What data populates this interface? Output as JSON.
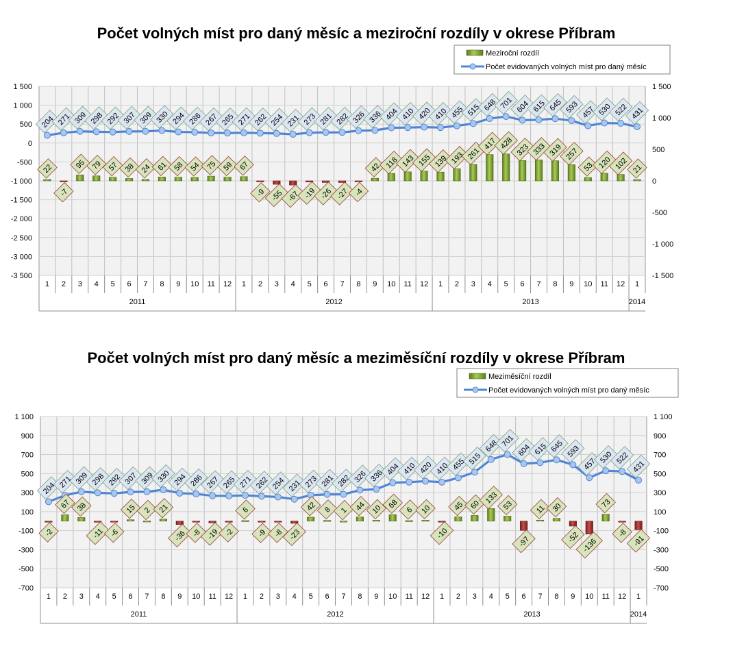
{
  "chart_data": [
    {
      "type": "bar+line",
      "title": "Počet volných míst pro daný měsíc a meziroční rozdíly v okrese Příbram",
      "legend": [
        "Meziroční rozdíl",
        "Počet evidovaných volných míst pro daný měsíc"
      ],
      "legend_position": "top-right",
      "grid": true,
      "months": [
        "1",
        "2",
        "3",
        "4",
        "5",
        "6",
        "7",
        "8",
        "9",
        "10",
        "11",
        "12",
        "1",
        "2",
        "3",
        "4",
        "5",
        "6",
        "7",
        "8",
        "9",
        "10",
        "11",
        "12",
        "1",
        "2",
        "3",
        "4",
        "5",
        "6",
        "7",
        "8",
        "9",
        "10",
        "11",
        "12",
        "1"
      ],
      "years": [
        {
          "label": "2011",
          "count": 12
        },
        {
          "label": "2012",
          "count": 12
        },
        {
          "label": "2013",
          "count": 12
        },
        {
          "label": "2014",
          "count": 1
        }
      ],
      "series": [
        {
          "name": "Meziroční rozdíl",
          "axis": "right",
          "kind": "bar",
          "values": [
            22,
            -7,
            95,
            79,
            57,
            38,
            24,
            61,
            58,
            54,
            75,
            59,
            67,
            -9,
            -55,
            -67,
            -19,
            -26,
            -27,
            -4,
            42,
            118,
            143,
            155,
            139,
            193,
            261,
            417,
            428,
            323,
            333,
            319,
            257,
            53,
            120,
            102,
            21
          ]
        },
        {
          "name": "Počet evidovaných volných míst pro daný měsíc",
          "axis": "left",
          "kind": "line",
          "values": [
            204,
            271,
            309,
            298,
            292,
            307,
            309,
            330,
            294,
            286,
            267,
            265,
            271,
            262,
            254,
            231,
            273,
            281,
            282,
            326,
            336,
            404,
            410,
            420,
            410,
            455,
            515,
            648,
            701,
            604,
            615,
            645,
            593,
            457,
            530,
            522,
            431
          ]
        }
      ],
      "left_axis": {
        "ticks": [
          "1 500",
          "1 000",
          "500",
          "0",
          "-500",
          "-1 000",
          "-1 500",
          "-2 000",
          "-2 500",
          "-3 000",
          "-3 500"
        ],
        "ylim": [
          -3500,
          1500
        ]
      },
      "right_axis": {
        "ticks": [
          "1 500",
          "1 000",
          "500",
          "0",
          "-500",
          "-1 000",
          "-1 500"
        ],
        "ylim": [
          -1500,
          1500
        ]
      }
    },
    {
      "type": "bar+line",
      "title": "Počet volných míst pro daný měsíc a meziměsíční rozdíly v okrese Příbram",
      "legend": [
        "Meziměsíční rozdíl",
        "Počet evidovaných volných míst pro daný měsíc"
      ],
      "legend_position": "top-right",
      "grid": true,
      "months": [
        "1",
        "2",
        "3",
        "4",
        "5",
        "6",
        "7",
        "8",
        "9",
        "10",
        "11",
        "12",
        "1",
        "2",
        "3",
        "4",
        "5",
        "6",
        "7",
        "8",
        "9",
        "10",
        "11",
        "12",
        "1",
        "2",
        "3",
        "4",
        "5",
        "6",
        "7",
        "8",
        "9",
        "10",
        "11",
        "12",
        "1"
      ],
      "years": [
        {
          "label": "2011",
          "count": 12
        },
        {
          "label": "2012",
          "count": 12
        },
        {
          "label": "2013",
          "count": 12
        },
        {
          "label": "2014",
          "count": 1
        }
      ],
      "series": [
        {
          "name": "Meziměsíční rozdíl",
          "axis": "left",
          "kind": "bar",
          "values": [
            -2,
            67,
            38,
            -11,
            -6,
            15,
            2,
            21,
            -36,
            -8,
            -19,
            -2,
            6,
            -9,
            -8,
            -23,
            42,
            8,
            1,
            44,
            10,
            68,
            6,
            10,
            -10,
            45,
            60,
            133,
            53,
            -97,
            11,
            30,
            -52,
            -136,
            73,
            -8,
            -91
          ]
        },
        {
          "name": "Počet evidovaných volných míst pro daný měsíc",
          "axis": "left",
          "kind": "line",
          "values": [
            204,
            271,
            309,
            298,
            292,
            307,
            309,
            330,
            294,
            286,
            267,
            265,
            271,
            262,
            254,
            231,
            273,
            281,
            282,
            326,
            336,
            404,
            410,
            420,
            410,
            455,
            515,
            648,
            701,
            604,
            615,
            645,
            593,
            457,
            530,
            522,
            431
          ]
        }
      ],
      "left_axis": {
        "ticks": [
          "1 100",
          "900",
          "700",
          "500",
          "300",
          "100",
          "-100",
          "-300",
          "-500",
          "-700"
        ],
        "ylim": [
          -700,
          1100
        ]
      },
      "right_axis": {
        "ticks": [
          "1 100",
          "900",
          "700",
          "500",
          "300",
          "100",
          "-100",
          "-300",
          "-500",
          "-700"
        ],
        "ylim": [
          -700,
          1100
        ]
      }
    }
  ]
}
